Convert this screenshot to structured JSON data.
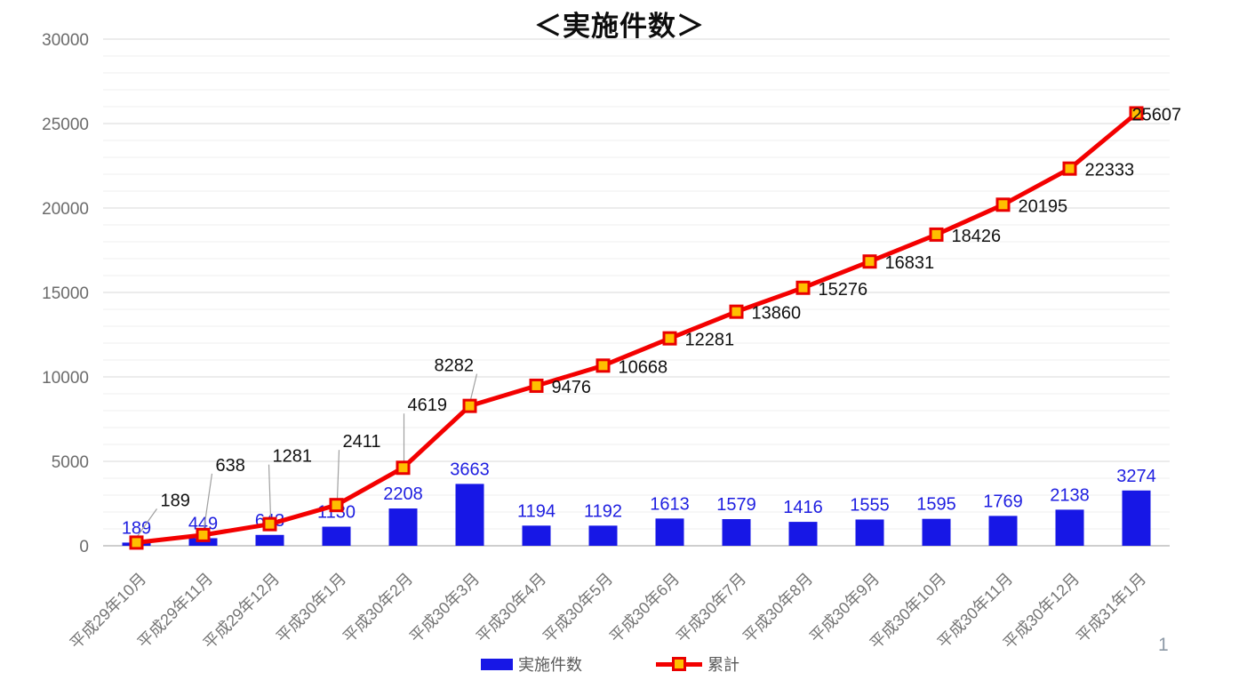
{
  "title": "＜実施件数＞",
  "page_number": "1",
  "legend": [
    {
      "label": "実施件数",
      "type": "bar"
    },
    {
      "label": "累計",
      "type": "line"
    }
  ],
  "chart_data": {
    "type": "bar+line",
    "title": "＜実施件数＞",
    "categories": [
      "平成29年10月",
      "平成29年11月",
      "平成29年12月",
      "平成30年1月",
      "平成30年2月",
      "平成30年3月",
      "平成30年4月",
      "平成30年5月",
      "平成30年6月",
      "平成30年7月",
      "平成30年8月",
      "平成30年9月",
      "平成30年10月",
      "平成30年11月",
      "平成30年12月",
      "平成31年1月"
    ],
    "series": [
      {
        "name": "実施件数",
        "type": "bar",
        "color": "#1717e6",
        "label_color": "#1e1ee0",
        "values": [
          189,
          449,
          643,
          1130,
          2208,
          3663,
          1194,
          1192,
          1613,
          1579,
          1416,
          1555,
          1595,
          1769,
          2138,
          3274
        ]
      },
      {
        "name": "累計",
        "type": "line",
        "color": "#f30000",
        "marker": "square",
        "marker_fill": "#ffbf00",
        "marker_stroke": "#e90000",
        "values": [
          189,
          638,
          1281,
          2411,
          4619,
          8282,
          9476,
          10668,
          12281,
          13860,
          15276,
          16831,
          18426,
          20195,
          22333,
          25607
        ]
      }
    ],
    "ylim": [
      0,
      30000
    ],
    "y_major_ticks": [
      0,
      5000,
      10000,
      15000,
      20000,
      25000,
      30000
    ],
    "y_minor_step": 1000,
    "grid": true,
    "legend_position": "bottom",
    "colors": {
      "grid_minor": "#efefef",
      "grid_major": "#d8d8d8",
      "axis": "#bdbdbd",
      "leader": "#a0a0a0"
    }
  }
}
